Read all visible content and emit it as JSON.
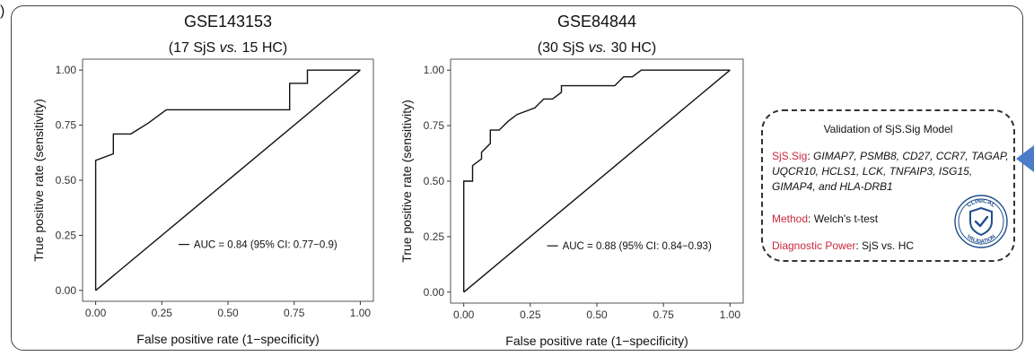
{
  "panel_letter": ")",
  "chart_data": [
    {
      "type": "line",
      "title": "GSE143153",
      "subtitle_pre": "(17 SjS ",
      "subtitle_vs": "vs.",
      "subtitle_post": " 15 HC)",
      "xlabel": "False positive rate (1−specificity)",
      "ylabel": "True positive rate (sensitivity)",
      "xlim": [
        0,
        1
      ],
      "ylim": [
        0,
        1
      ],
      "xticks": [
        "0.00",
        "0.25",
        "0.50",
        "0.75",
        "1.00"
      ],
      "yticks": [
        "0.00",
        "0.25",
        "0.50",
        "0.75",
        "1.00"
      ],
      "annotation": "AUC = 0.84 (95% CI: 0.77−0.9)",
      "series": [
        {
          "kind": "roc",
          "x": [
            0,
            0,
            0.067,
            0.067,
            0.133,
            0.2,
            0.267,
            0.733,
            0.733,
            0.8,
            0.8,
            1
          ],
          "y": [
            0,
            0.59,
            0.62,
            0.71,
            0.71,
            0.76,
            0.82,
            0.82,
            0.94,
            0.94,
            1,
            1
          ]
        },
        {
          "kind": "diagonal",
          "x": [
            0,
            1
          ],
          "y": [
            0,
            1
          ]
        }
      ]
    },
    {
      "type": "line",
      "title": "GSE84844",
      "subtitle_pre": "(30 SjS ",
      "subtitle_vs": "vs.",
      "subtitle_post": " 30 HC)",
      "xlabel": "False positive rate (1−specificity)",
      "ylabel": "True positive rate (sensitivity)",
      "xlim": [
        0,
        1
      ],
      "ylim": [
        0,
        1
      ],
      "xticks": [
        "0.00",
        "0.25",
        "0.50",
        "0.75",
        "1.00"
      ],
      "yticks": [
        "0.00",
        "0.25",
        "0.50",
        "0.75",
        "1.00"
      ],
      "annotation": "AUC = 0.88 (95% CI: 0.84−0.93)",
      "series": [
        {
          "kind": "roc",
          "x": [
            0,
            0,
            0.033,
            0.033,
            0.067,
            0.067,
            0.1,
            0.1,
            0.133,
            0.167,
            0.2,
            0.267,
            0.3,
            0.333,
            0.367,
            0.367,
            0.4,
            0.4,
            0.567,
            0.6,
            0.633,
            0.667,
            1
          ],
          "y": [
            0,
            0.5,
            0.5,
            0.57,
            0.6,
            0.63,
            0.67,
            0.73,
            0.73,
            0.77,
            0.8,
            0.83,
            0.87,
            0.87,
            0.9,
            0.93,
            0.93,
            0.93,
            0.93,
            0.97,
            0.97,
            1,
            1
          ]
        },
        {
          "kind": "diagonal",
          "x": [
            0,
            1
          ],
          "y": [
            0,
            1
          ]
        }
      ]
    }
  ],
  "callout": {
    "title": "Validation of SjS.Sig Model",
    "sig_label": "SjS.Sig",
    "sig_sep": ":  ",
    "sig_genes": "GIMAP7, PSMB8, CD27, CCR7, TAGAP, UQCR10, HCLS1, LCK, TNFAIP3, ISG15, GIMAP4, and HLA-DRB1",
    "method_label": "Method",
    "method_value": ": Welch's t-test",
    "power_label": "Diagnostic Power",
    "power_value": ": SjS vs. HC",
    "seal_top": "CLINICAL",
    "seal_bottom": "VALIDATION",
    "seal_color": "#1f4e8c",
    "arrow_color": "#4a7cc9"
  }
}
